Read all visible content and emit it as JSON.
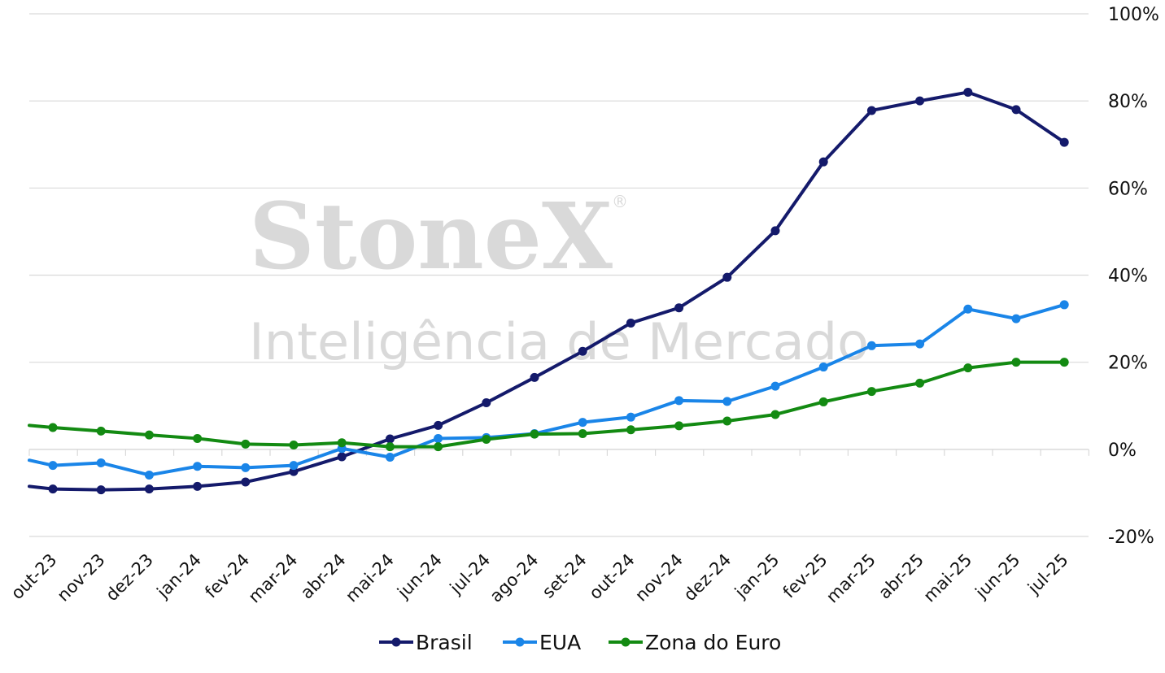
{
  "watermark": {
    "brand": "StoneX",
    "registered": "®",
    "tagline": "Inteligência de Mercado"
  },
  "colors": {
    "Brasil": "#141a6b",
    "EUA": "#1a85e8",
    "Zona do Euro": "#138a12",
    "grid": "#d9d9d9",
    "watermark": "#d9d9d9"
  },
  "chart_data": {
    "type": "line",
    "categories": [
      "out-23",
      "nov-23",
      "dez-23",
      "jan-24",
      "fev-24",
      "mar-24",
      "abr-24",
      "mai-24",
      "jun-24",
      "jul-24",
      "ago-24",
      "set-24",
      "out-24",
      "nov-24",
      "dez-24",
      "jan-25",
      "fev-25",
      "mar-25",
      "abr-25",
      "mai-25",
      "jun-25",
      "jul-25"
    ],
    "series": [
      {
        "name": "Brasil",
        "start": -8.5,
        "values": [
          -9.1,
          -9.3,
          -9.1,
          -8.5,
          -7.5,
          -5.1,
          -1.7,
          2.4,
          5.5,
          10.7,
          16.5,
          22.5,
          29.0,
          32.5,
          39.5,
          50.2,
          66.0,
          77.8,
          80.0,
          82.0,
          78.0,
          70.5
        ]
      },
      {
        "name": "EUA",
        "start": -2.5,
        "values": [
          -3.7,
          -3.1,
          -5.9,
          -3.9,
          -4.2,
          -3.7,
          0.2,
          -1.8,
          2.5,
          2.7,
          3.6,
          6.2,
          7.4,
          11.2,
          11.0,
          14.5,
          18.9,
          23.8,
          24.2,
          32.2,
          30.0,
          33.2
        ]
      },
      {
        "name": "Zona do Euro",
        "start": 5.5,
        "values": [
          5.0,
          4.2,
          3.3,
          2.5,
          1.2,
          1.0,
          1.5,
          0.6,
          0.6,
          2.3,
          3.5,
          3.6,
          4.5,
          5.4,
          6.5,
          8.0,
          10.9,
          13.3,
          15.2,
          18.7,
          20.0,
          20.0
        ]
      }
    ],
    "ylim": [
      -20,
      100
    ],
    "yticks": [
      -20,
      0,
      20,
      40,
      60,
      80,
      100
    ],
    "ytick_labels": [
      "-20%",
      "0%",
      "20%",
      "40%",
      "60%",
      "80%",
      "100%"
    ],
    "y_axis_position": "right",
    "grid": "horizontal",
    "legend": "bottom-center",
    "title": "",
    "xlabel": "",
    "ylabel": ""
  }
}
